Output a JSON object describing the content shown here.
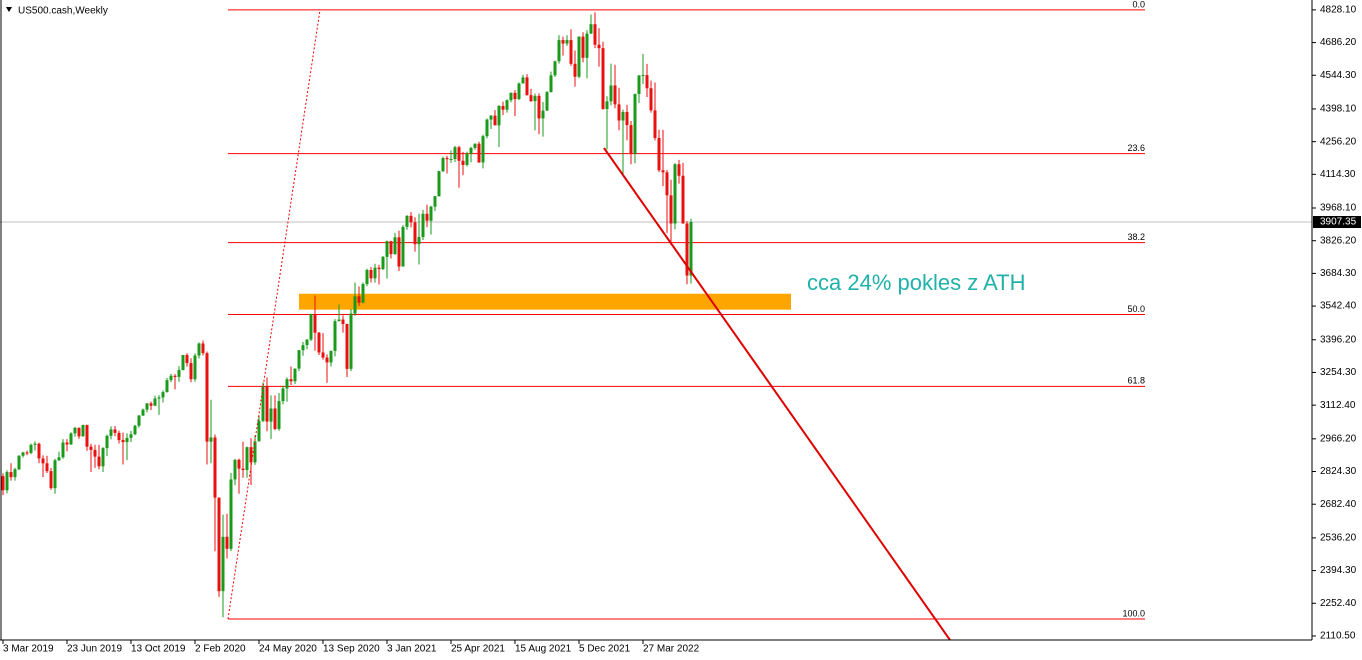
{
  "chart_data": {
    "type": "candlestick",
    "title": "US500.cash,Weekly",
    "categories": [
      "3 Mar 2019",
      null,
      null,
      null,
      null,
      null,
      null,
      null,
      null,
      null,
      null,
      null,
      null,
      null,
      null,
      null,
      "23 Jun 2019",
      null,
      null,
      null,
      null,
      null,
      null,
      null,
      null,
      null,
      null,
      null,
      null,
      null,
      null,
      null,
      "13 Oct 2019",
      null,
      null,
      null,
      null,
      null,
      null,
      null,
      null,
      null,
      null,
      null,
      null,
      null,
      null,
      null,
      "2 Feb 2020",
      null,
      null,
      null,
      null,
      null,
      null,
      null,
      null,
      null,
      null,
      null,
      null,
      null,
      null,
      null,
      "24 May 2020",
      null,
      null,
      null,
      null,
      null,
      null,
      null,
      null,
      null,
      null,
      null,
      null,
      null,
      null,
      null,
      "13 Sep 2020",
      null,
      null,
      null,
      null,
      null,
      null,
      null,
      null,
      null,
      null,
      null,
      null,
      null,
      null,
      null,
      "3 Jan 2021",
      null,
      null,
      null,
      null,
      null,
      null,
      null,
      null,
      null,
      null,
      null,
      null,
      null,
      null,
      null,
      "25 Apr 2021",
      null,
      null,
      null,
      null,
      null,
      null,
      null,
      null,
      null,
      null,
      null,
      null,
      null,
      null,
      null,
      "15 Aug 2021",
      null,
      null,
      null,
      null,
      null,
      null,
      null,
      null,
      null,
      null,
      null,
      null,
      null,
      null,
      null,
      "5 Dec 2021",
      null,
      null,
      null,
      null,
      null,
      null,
      null,
      null,
      null,
      null,
      null,
      null,
      null,
      null,
      null,
      "27 Mar 2022",
      null,
      null,
      null,
      null,
      null,
      null,
      null,
      null,
      null,
      null,
      null,
      null
    ],
    "candles": [
      [
        2804,
        2816,
        2722,
        2743
      ],
      [
        2743,
        2830,
        2730,
        2822
      ],
      [
        2822,
        2860,
        2785,
        2800
      ],
      [
        2800,
        2840,
        2785,
        2834
      ],
      [
        2834,
        2895,
        2830,
        2893
      ],
      [
        2893,
        2910,
        2885,
        2907
      ],
      [
        2907,
        2915,
        2895,
        2905
      ],
      [
        2905,
        2946,
        2900,
        2940
      ],
      [
        2940,
        2955,
        2915,
        2945
      ],
      [
        2945,
        2950,
        2860,
        2881
      ],
      [
        2881,
        2895,
        2800,
        2860
      ],
      [
        2860,
        2892,
        2818,
        2826
      ],
      [
        2826,
        2840,
        2745,
        2752
      ],
      [
        2752,
        2880,
        2728,
        2873
      ],
      [
        2873,
        2910,
        2870,
        2886
      ],
      [
        2886,
        2965,
        2880,
        2950
      ],
      [
        2950,
        2965,
        2912,
        2942
      ],
      [
        2942,
        2995,
        2940,
        2990
      ],
      [
        2990,
        3018,
        2975,
        3014
      ],
      [
        3014,
        3016,
        2966,
        2977
      ],
      [
        2977,
        3028,
        2976,
        3026
      ],
      [
        3026,
        3028,
        2914,
        2932
      ],
      [
        2932,
        2945,
        2822,
        2918
      ],
      [
        2918,
        2940,
        2840,
        2889
      ],
      [
        2889,
        2940,
        2834,
        2847
      ],
      [
        2847,
        2930,
        2822,
        2926
      ],
      [
        2926,
        2985,
        2891,
        2979
      ],
      [
        2979,
        3021,
        2964,
        3007
      ],
      [
        3007,
        3022,
        2978,
        2992
      ],
      [
        2992,
        3002,
        2946,
        2961
      ],
      [
        2961,
        2993,
        2855,
        2952
      ],
      [
        2952,
        2990,
        2874,
        2970
      ],
      [
        2970,
        3001,
        2952,
        2986
      ],
      [
        2986,
        3027,
        2982,
        3023
      ],
      [
        3023,
        3070,
        3015,
        3067
      ],
      [
        3067,
        3098,
        3066,
        3093
      ],
      [
        3093,
        3121,
        3081,
        3120
      ],
      [
        3120,
        3128,
        3091,
        3110
      ],
      [
        3110,
        3154,
        3108,
        3141
      ],
      [
        3141,
        3156,
        3070,
        3146
      ],
      [
        3146,
        3176,
        3124,
        3169
      ],
      [
        3169,
        3231,
        3167,
        3221
      ],
      [
        3221,
        3248,
        3212,
        3240
      ],
      [
        3240,
        3247,
        3181,
        3235
      ],
      [
        3235,
        3282,
        3214,
        3265
      ],
      [
        3265,
        3330,
        3263,
        3330
      ],
      [
        3330,
        3338,
        3280,
        3295
      ],
      [
        3295,
        3316,
        3212,
        3225
      ],
      [
        3225,
        3337,
        3214,
        3328
      ],
      [
        3328,
        3385,
        3315,
        3380
      ],
      [
        3380,
        3393,
        3328,
        3338
      ],
      [
        3338,
        3345,
        2855,
        2954
      ],
      [
        2954,
        3136,
        2860,
        2972
      ],
      [
        2972,
        2985,
        2478,
        2711
      ],
      [
        2711,
        2712,
        2280,
        2305
      ],
      [
        2305,
        2637,
        2192,
        2541
      ],
      [
        2541,
        2641,
        2447,
        2489
      ],
      [
        2489,
        2818,
        2479,
        2790
      ],
      [
        2790,
        2879,
        2765,
        2875
      ],
      [
        2875,
        2881,
        2728,
        2837
      ],
      [
        2837,
        2954,
        2797,
        2831
      ],
      [
        2831,
        2933,
        2797,
        2930
      ],
      [
        2930,
        2969,
        2766,
        2864
      ],
      [
        2864,
        2981,
        2853,
        2955
      ],
      [
        2955,
        3068,
        2955,
        3044
      ],
      [
        3044,
        3211,
        3038,
        3194
      ],
      [
        3194,
        3233,
        2999,
        3041
      ],
      [
        3041,
        3155,
        2965,
        3098
      ],
      [
        3098,
        3155,
        3004,
        3009
      ],
      [
        3009,
        3165,
        3001,
        3130
      ],
      [
        3130,
        3197,
        3116,
        3185
      ],
      [
        3185,
        3233,
        3127,
        3225
      ],
      [
        3225,
        3280,
        3200,
        3216
      ],
      [
        3216,
        3272,
        3204,
        3271
      ],
      [
        3271,
        3352,
        3260,
        3351
      ],
      [
        3351,
        3387,
        3327,
        3373
      ],
      [
        3373,
        3399,
        3355,
        3397
      ],
      [
        3397,
        3509,
        3391,
        3508
      ],
      [
        3508,
        3588,
        3349,
        3427
      ],
      [
        3427,
        3430,
        3330,
        3341
      ],
      [
        3341,
        3425,
        3310,
        3319
      ],
      [
        3319,
        3333,
        3209,
        3298
      ],
      [
        3298,
        3349,
        3280,
        3348
      ],
      [
        3348,
        3486,
        3324,
        3477
      ],
      [
        3477,
        3550,
        3476,
        3484
      ],
      [
        3484,
        3502,
        3427,
        3465
      ],
      [
        3465,
        3466,
        3234,
        3270
      ],
      [
        3270,
        3529,
        3260,
        3510
      ],
      [
        3510,
        3645,
        3500,
        3585
      ],
      [
        3585,
        3628,
        3543,
        3557
      ],
      [
        3557,
        3645,
        3554,
        3638
      ],
      [
        3638,
        3705,
        3629,
        3699
      ],
      [
        3699,
        3712,
        3645,
        3663
      ],
      [
        3663,
        3726,
        3644,
        3709
      ],
      [
        3709,
        3722,
        3636,
        3703
      ],
      [
        3703,
        3760,
        3699,
        3756
      ],
      [
        3756,
        3827,
        3662,
        3824
      ],
      [
        3824,
        3826,
        3749,
        3768
      ],
      [
        3768,
        3860,
        3765,
        3841
      ],
      [
        3841,
        3870,
        3694,
        3714
      ],
      [
        3714,
        3894,
        3725,
        3886
      ],
      [
        3886,
        3937,
        3874,
        3934
      ],
      [
        3934,
        3950,
        3884,
        3906
      ],
      [
        3906,
        3928,
        3779,
        3811
      ],
      [
        3811,
        3944,
        3723,
        3842
      ],
      [
        3842,
        3960,
        3829,
        3943
      ],
      [
        3943,
        3983,
        3885,
        3913
      ],
      [
        3913,
        3978,
        3853,
        3974
      ],
      [
        3974,
        4020,
        3955,
        4019
      ],
      [
        4019,
        4130,
        4018,
        4128
      ],
      [
        4128,
        4191,
        4124,
        4185
      ],
      [
        4185,
        4195,
        4118,
        4180
      ],
      [
        4180,
        4218,
        4164,
        4181
      ],
      [
        4181,
        4238,
        4168,
        4232
      ],
      [
        4232,
        4238,
        4056,
        4173
      ],
      [
        4173,
        4212,
        4111,
        4155
      ],
      [
        4155,
        4213,
        4149,
        4204
      ],
      [
        4204,
        4234,
        4167,
        4229
      ],
      [
        4229,
        4249,
        4221,
        4247
      ],
      [
        4247,
        4256,
        4164,
        4166
      ],
      [
        4166,
        4286,
        4140,
        4280
      ],
      [
        4280,
        4356,
        4271,
        4352
      ],
      [
        4352,
        4372,
        4311,
        4369
      ],
      [
        4369,
        4393,
        4327,
        4327
      ],
      [
        4327,
        4415,
        4233,
        4411
      ],
      [
        4411,
        4430,
        4372,
        4395
      ],
      [
        4395,
        4440,
        4382,
        4436
      ],
      [
        4436,
        4470,
        4427,
        4468
      ],
      [
        4468,
        4480,
        4367,
        4441
      ],
      [
        4441,
        4513,
        4437,
        4509
      ],
      [
        4509,
        4546,
        4508,
        4535
      ],
      [
        4535,
        4549,
        4456,
        4458
      ],
      [
        4458,
        4486,
        4429,
        4432
      ],
      [
        4432,
        4465,
        4305,
        4455
      ],
      [
        4455,
        4466,
        4288,
        4357
      ],
      [
        4357,
        4429,
        4278,
        4391
      ],
      [
        4391,
        4476,
        4390,
        4471
      ],
      [
        4471,
        4560,
        4470,
        4544
      ],
      [
        4544,
        4608,
        4537,
        4605
      ],
      [
        4605,
        4718,
        4595,
        4697
      ],
      [
        4697,
        4712,
        4630,
        4682
      ],
      [
        4682,
        4718,
        4672,
        4697
      ],
      [
        4697,
        4744,
        4585,
        4594
      ],
      [
        4594,
        4652,
        4495,
        4538
      ],
      [
        4538,
        4713,
        4532,
        4712
      ],
      [
        4712,
        4731,
        4600,
        4620
      ],
      [
        4620,
        4740,
        4531,
        4725
      ],
      [
        4725,
        4808,
        4724,
        4766
      ],
      [
        4766,
        4818,
        4662,
        4677
      ],
      [
        4677,
        4749,
        4582,
        4662
      ],
      [
        4662,
        4690,
        4395,
        4398
      ],
      [
        4398,
        4453,
        4222,
        4431
      ],
      [
        4431,
        4595,
        4414,
        4500
      ],
      [
        4500,
        4590,
        4401,
        4418
      ],
      [
        4418,
        4490,
        4305,
        4348
      ],
      [
        4348,
        4395,
        4115,
        4385
      ],
      [
        4385,
        4416,
        4262,
        4328
      ],
      [
        4328,
        4346,
        4158,
        4204
      ],
      [
        4204,
        4465,
        4162,
        4463
      ],
      [
        4463,
        4546,
        4424,
        4543
      ],
      [
        4543,
        4637,
        4506,
        4545
      ],
      [
        4545,
        4594,
        4450,
        4488
      ],
      [
        4488,
        4521,
        4382,
        4392
      ],
      [
        4392,
        4513,
        4261,
        4272
      ],
      [
        4272,
        4308,
        4124,
        4132
      ],
      [
        4132,
        4307,
        4063,
        4123
      ],
      [
        4123,
        4133,
        3859,
        4023
      ],
      [
        4023,
        4091,
        3807,
        3901
      ],
      [
        3901,
        4163,
        3876,
        4158
      ],
      [
        4158,
        4177,
        4074,
        4108
      ],
      [
        4108,
        4164,
        3900,
        3901
      ],
      [
        3901,
        3911,
        3637,
        3675
      ],
      [
        3675,
        3922,
        3640,
        3907.35
      ]
    ],
    "up_color": "#1a9a1a",
    "down_color": "#e8110f",
    "ylim": [
      2093,
      4871
    ],
    "yticks": [
      {
        "value": 4828.1,
        "label": "4828.10"
      },
      {
        "value": 4686.2,
        "label": "4686.20"
      },
      {
        "value": 4544.3,
        "label": "4544.30"
      },
      {
        "value": 4398.1,
        "label": "4398.10"
      },
      {
        "value": 4256.2,
        "label": "4256.20"
      },
      {
        "value": 4114.3,
        "label": "4114.30"
      },
      {
        "value": 3968.1,
        "label": "3968.10"
      },
      {
        "value": 3826.2,
        "label": "3826.20"
      },
      {
        "value": 3684.3,
        "label": "3684.30"
      },
      {
        "value": 3542.4,
        "label": "3542.40"
      },
      {
        "value": 3396.2,
        "label": "3396.20"
      },
      {
        "value": 3254.3,
        "label": "3254.30"
      },
      {
        "value": 3112.4,
        "label": "3112.40"
      },
      {
        "value": 2966.2,
        "label": "2966.20"
      },
      {
        "value": 2824.3,
        "label": "2824.30"
      },
      {
        "value": 2682.4,
        "label": "2682.40"
      },
      {
        "value": 2536.2,
        "label": "2536.20"
      },
      {
        "value": 2394.3,
        "label": "2394.30"
      },
      {
        "value": 2252.4,
        "label": "2252.40"
      },
      {
        "value": 2110.5,
        "label": "2110.50"
      }
    ],
    "current_price": 3907.35,
    "current_price_color": "#c0c0c0",
    "fib_color": "#ff0000",
    "fib_levels": [
      {
        "label": "0.0",
        "price": 4828
      },
      {
        "label": "23.6",
        "price": 4204
      },
      {
        "label": "38.2",
        "price": 3818
      },
      {
        "label": "50.0",
        "price": 3506
      },
      {
        "label": "61.8",
        "price": 3194
      },
      {
        "label": "100.0",
        "price": 2184
      }
    ],
    "zone": {
      "from": 3527,
      "to": 3596,
      "color": "#ffa500"
    },
    "annotation": {
      "text": "cca 24% pokles z ATH",
      "color": "#20b2aa"
    }
  }
}
